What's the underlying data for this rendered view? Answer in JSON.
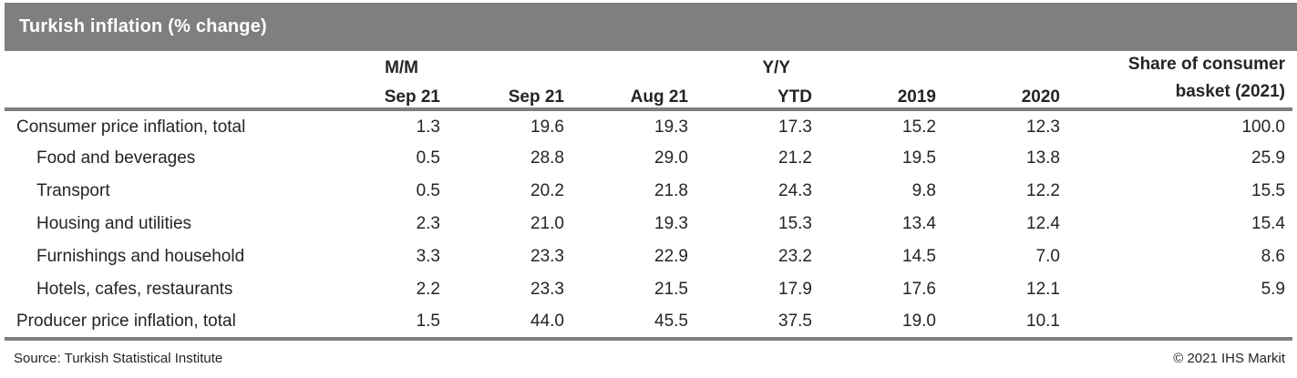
{
  "title_bar": {
    "title": "Turkish inflation (% change)"
  },
  "colors": {
    "titlebar_bg": "#7f7f7f",
    "titlebar_text": "#ffffff",
    "rule_gray": "#7f7f7f",
    "body_text": "#262424"
  },
  "chart_data": {
    "type": "table",
    "title": "Turkish inflation (% change)",
    "group_headers": {
      "mm": "M/M",
      "yy": "Y/Y"
    },
    "columns": [
      "Sep 21",
      "Sep 21",
      "Aug 21",
      "YTD",
      "2019",
      "2020"
    ],
    "share_header": {
      "line1": "Share of consumer",
      "line2": "basket (2021)"
    },
    "rows": [
      {
        "label": "Consumer price inflation, total",
        "indent": false,
        "values": [
          "1.3",
          "19.6",
          "19.3",
          "17.3",
          "15.2",
          "12.3",
          "100.0"
        ]
      },
      {
        "label": "Food and beverages",
        "indent": true,
        "values": [
          "0.5",
          "28.8",
          "29.0",
          "21.2",
          "19.5",
          "13.8",
          "25.9"
        ]
      },
      {
        "label": "Transport",
        "indent": true,
        "values": [
          "0.5",
          "20.2",
          "21.8",
          "24.3",
          "9.8",
          "12.2",
          "15.5"
        ]
      },
      {
        "label": "Housing and utilities",
        "indent": true,
        "values": [
          "2.3",
          "21.0",
          "19.3",
          "15.3",
          "13.4",
          "12.4",
          "15.4"
        ]
      },
      {
        "label": "Furnishings and household",
        "indent": true,
        "values": [
          "3.3",
          "23.3",
          "22.9",
          "23.2",
          "14.5",
          "7.0",
          "8.6"
        ]
      },
      {
        "label": "Hotels, cafes, restaurants",
        "indent": true,
        "values": [
          "2.2",
          "23.3",
          "21.5",
          "17.9",
          "17.6",
          "12.1",
          "5.9"
        ]
      },
      {
        "label": "Producer price inflation, total",
        "indent": false,
        "values": [
          "1.5",
          "44.0",
          "45.5",
          "37.5",
          "19.0",
          "10.1",
          ""
        ]
      }
    ]
  },
  "footer": {
    "source": "Source: Turkish Statistical Institute",
    "copyright": "© 2021 IHS Markit"
  }
}
